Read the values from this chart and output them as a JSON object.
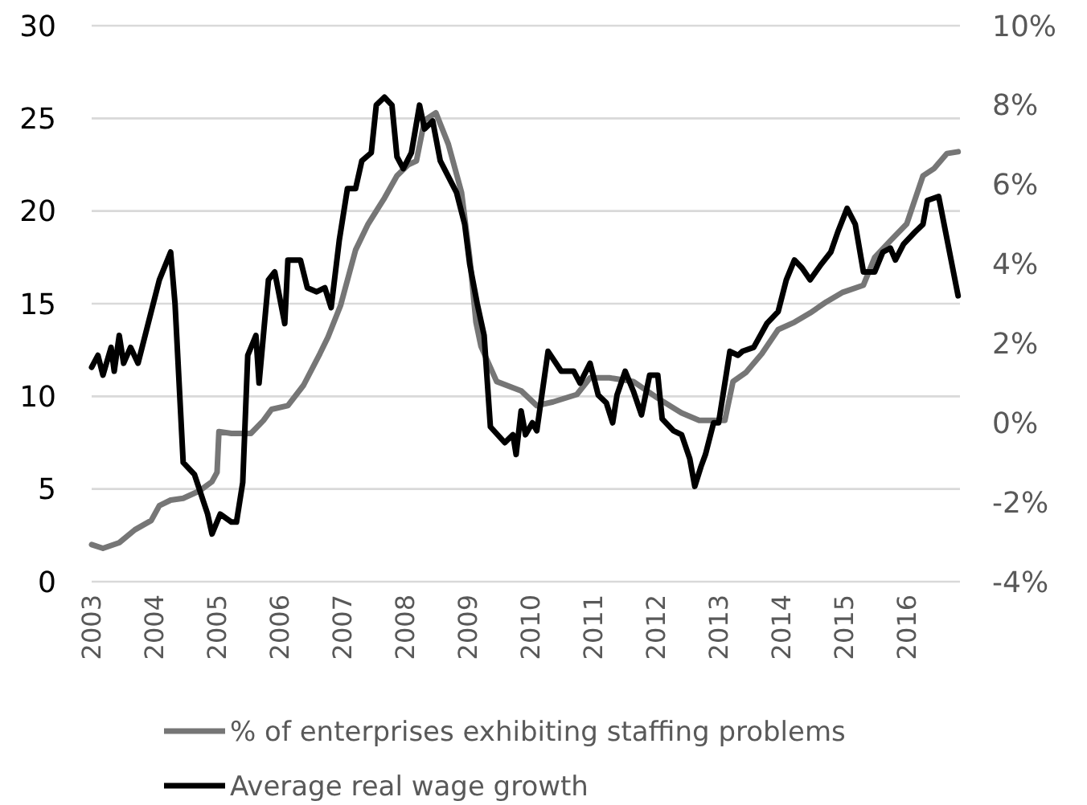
{
  "chart_data": {
    "type": "line",
    "xlim": [
      2003,
      2016.85
    ],
    "xticks": [
      2003,
      2004,
      2005,
      2006,
      2007,
      2008,
      2009,
      2010,
      2011,
      2012,
      2013,
      2014,
      2015,
      2016
    ],
    "ylim": [
      0,
      30
    ],
    "yticks": [
      0,
      5,
      10,
      15,
      20,
      25,
      30
    ],
    "y2lim": [
      -4,
      10
    ],
    "y2ticks": [
      {
        "value": -4,
        "label": "-4%"
      },
      {
        "value": -2,
        "label": "-2%"
      },
      {
        "value": 0,
        "label": "0%"
      },
      {
        "value": 2,
        "label": "2%"
      },
      {
        "value": 4,
        "label": "4%"
      },
      {
        "value": 6,
        "label": "6%"
      },
      {
        "value": 8,
        "label": "8%"
      },
      {
        "value": 10,
        "label": "10%"
      }
    ],
    "grid": "y",
    "legend": "bottom",
    "marker": "none",
    "line_style": "solid",
    "series": [
      {
        "name": "% of enterprises exhibiting staffing problems",
        "color": "#767676",
        "x": [
          2003.0,
          2003.18,
          2003.44,
          2003.69,
          2003.95,
          2004.08,
          2004.26,
          2004.46,
          2004.72,
          2004.92,
          2005.0,
          2005.03,
          2005.23,
          2005.54,
          2005.74,
          2005.87,
          2006.13,
          2006.38,
          2006.64,
          2006.77,
          2006.97,
          2007.21,
          2007.41,
          2007.67,
          2007.87,
          2008.05,
          2008.18,
          2008.31,
          2008.49,
          2008.69,
          2008.9,
          2009.03,
          2009.13,
          2009.21,
          2009.46,
          2009.85,
          2010.1,
          2010.36,
          2010.74,
          2010.95,
          2011.26,
          2011.64,
          2012.03,
          2012.41,
          2012.69,
          2013.1,
          2013.23,
          2013.44,
          2013.69,
          2013.95,
          2014.21,
          2014.46,
          2014.72,
          2014.97,
          2015.31,
          2015.49,
          2015.74,
          2016.0,
          2016.26,
          2016.44,
          2016.64,
          2016.82
        ],
        "values": [
          2.0,
          1.8,
          2.1,
          2.8,
          3.3,
          4.1,
          4.4,
          4.5,
          4.9,
          5.4,
          5.9,
          8.1,
          8.0,
          8.0,
          8.7,
          9.3,
          9.5,
          10.6,
          12.3,
          13.2,
          14.9,
          17.9,
          19.3,
          20.7,
          21.9,
          22.5,
          22.7,
          24.9,
          25.3,
          23.6,
          21.0,
          17.5,
          14.0,
          12.7,
          10.8,
          10.3,
          9.5,
          9.7,
          10.1,
          11.0,
          11.0,
          10.8,
          9.9,
          9.1,
          8.7,
          8.7,
          10.8,
          11.3,
          12.3,
          13.6,
          14.0,
          14.5,
          15.1,
          15.6,
          16.0,
          17.5,
          18.4,
          19.3,
          21.9,
          22.3,
          23.1,
          23.2
        ]
      },
      {
        "name": "Average real wage growth",
        "color": "#000000",
        "axis": "y2",
        "x": [
          2003.0,
          2003.1,
          2003.18,
          2003.31,
          2003.36,
          2003.44,
          2003.51,
          2003.62,
          2003.74,
          2003.95,
          2004.08,
          2004.26,
          2004.33,
          2004.46,
          2004.64,
          2004.85,
          2004.92,
          2005.05,
          2005.23,
          2005.31,
          2005.41,
          2005.49,
          2005.62,
          2005.67,
          2005.82,
          2005.92,
          2006.08,
          2006.13,
          2006.33,
          2006.44,
          2006.59,
          2006.72,
          2006.82,
          2006.95,
          2007.08,
          2007.21,
          2007.31,
          2007.46,
          2007.54,
          2007.67,
          2007.79,
          2007.87,
          2007.97,
          2008.1,
          2008.23,
          2008.31,
          2008.44,
          2008.56,
          2008.82,
          2008.95,
          2009.03,
          2009.15,
          2009.26,
          2009.36,
          2009.59,
          2009.72,
          2009.77,
          2009.85,
          2009.92,
          2010.03,
          2010.1,
          2010.28,
          2010.49,
          2010.69,
          2010.79,
          2010.95,
          2011.08,
          2011.21,
          2011.31,
          2011.38,
          2011.51,
          2011.64,
          2011.77,
          2011.9,
          2012.03,
          2012.1,
          2012.28,
          2012.41,
          2012.54,
          2012.62,
          2012.72,
          2012.79,
          2012.92,
          2013.0,
          2013.13,
          2013.18,
          2013.31,
          2013.38,
          2013.56,
          2013.77,
          2013.95,
          2014.08,
          2014.21,
          2014.33,
          2014.46,
          2014.64,
          2014.79,
          2014.9,
          2015.05,
          2015.18,
          2015.31,
          2015.49,
          2015.62,
          2015.74,
          2015.82,
          2015.95,
          2016.13,
          2016.26,
          2016.33,
          2016.51,
          2016.82
        ],
        "values": [
          1.4,
          1.7,
          1.2,
          1.9,
          1.3,
          2.2,
          1.5,
          1.9,
          1.5,
          2.8,
          3.6,
          4.3,
          3.0,
          -1.0,
          -1.3,
          -2.3,
          -2.8,
          -2.3,
          -2.5,
          -2.5,
          -1.5,
          1.7,
          2.2,
          1.0,
          3.6,
          3.8,
          2.5,
          4.1,
          4.1,
          3.4,
          3.3,
          3.4,
          2.9,
          4.6,
          5.9,
          5.9,
          6.6,
          6.8,
          8.0,
          8.2,
          8.0,
          6.7,
          6.4,
          6.8,
          8.0,
          7.4,
          7.6,
          6.6,
          5.8,
          5.0,
          4.0,
          3.0,
          2.2,
          -0.1,
          -0.5,
          -0.3,
          -0.8,
          0.3,
          -0.3,
          0.0,
          -0.2,
          1.8,
          1.3,
          1.3,
          1.0,
          1.5,
          0.7,
          0.5,
          0.0,
          0.7,
          1.3,
          0.8,
          0.2,
          1.2,
          1.2,
          0.1,
          -0.2,
          -0.3,
          -0.9,
          -1.6,
          -1.1,
          -0.8,
          0.0,
          0.0,
          1.3,
          1.8,
          1.7,
          1.8,
          1.9,
          2.5,
          2.8,
          3.6,
          4.1,
          3.9,
          3.6,
          4.0,
          4.3,
          4.8,
          5.4,
          5.0,
          3.8,
          3.8,
          4.3,
          4.4,
          4.1,
          4.5,
          4.8,
          5.0,
          5.6,
          5.7,
          3.2
        ]
      }
    ]
  }
}
